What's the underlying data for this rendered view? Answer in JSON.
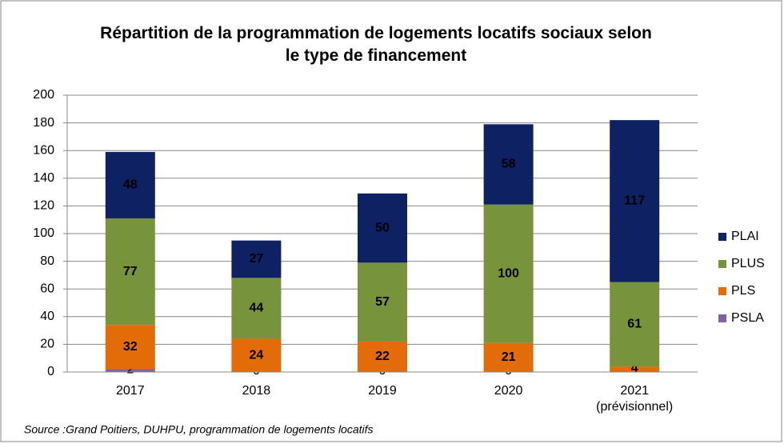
{
  "chart_data": {
    "type": "stacked_bar",
    "title": "Répartition de la programmation de logements locatifs sociaux selon le type de financement",
    "categories": [
      "2017",
      "2018",
      "2019",
      "2020",
      "2021\n(prévisionnel)"
    ],
    "series": [
      {
        "name": "PSLA",
        "color": "#8064a2",
        "label_color": "#000000",
        "values": [
          2,
          0,
          0,
          0,
          null
        ]
      },
      {
        "name": "PLS",
        "color": "#e36c09",
        "label_color": "#000000",
        "values": [
          32,
          24,
          22,
          21,
          4
        ]
      },
      {
        "name": "PLUS",
        "color": "#77933c",
        "label_color": "#ffffff",
        "values": [
          77,
          44,
          57,
          100,
          61
        ]
      },
      {
        "name": "PLAI",
        "color": "#0e2162",
        "label_color": "#ffffff",
        "values": [
          48,
          27,
          50,
          58,
          117
        ]
      }
    ],
    "ylim": [
      0,
      200
    ],
    "yticks": [
      0,
      20,
      40,
      60,
      80,
      100,
      120,
      140,
      160,
      180,
      200
    ],
    "grid": true,
    "legend": "right",
    "source": "Source :Grand Poitiers, DUHPU,  programmation de logements locatifs"
  }
}
